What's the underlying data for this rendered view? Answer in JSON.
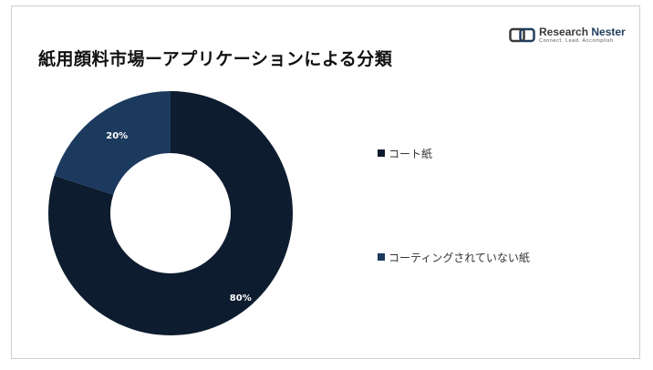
{
  "title": "紙用顔料市場ーアプリケーションによる分類",
  "logo": {
    "name_part1": "Research ",
    "name_part2": "Nester",
    "tagline": "Connect. Lead. Accomplish"
  },
  "colors": {
    "coated": "#0e1c2f",
    "uncoated": "#1c3a5e",
    "background": "#ffffff"
  },
  "chart_data": {
    "type": "pie",
    "donut": true,
    "title": "紙用顔料市場ーアプリケーションによる分類",
    "legend_position": "right",
    "series": [
      {
        "name": "コート紙",
        "value": 80,
        "label": "80%",
        "color": "#0e1c2f"
      },
      {
        "name": "コーティングされていない紙",
        "value": 20,
        "label": "20%",
        "color": "#1c3a5e"
      }
    ]
  },
  "legend": [
    {
      "label": "コート紙"
    },
    {
      "label": "コーティングされていない紙"
    }
  ]
}
